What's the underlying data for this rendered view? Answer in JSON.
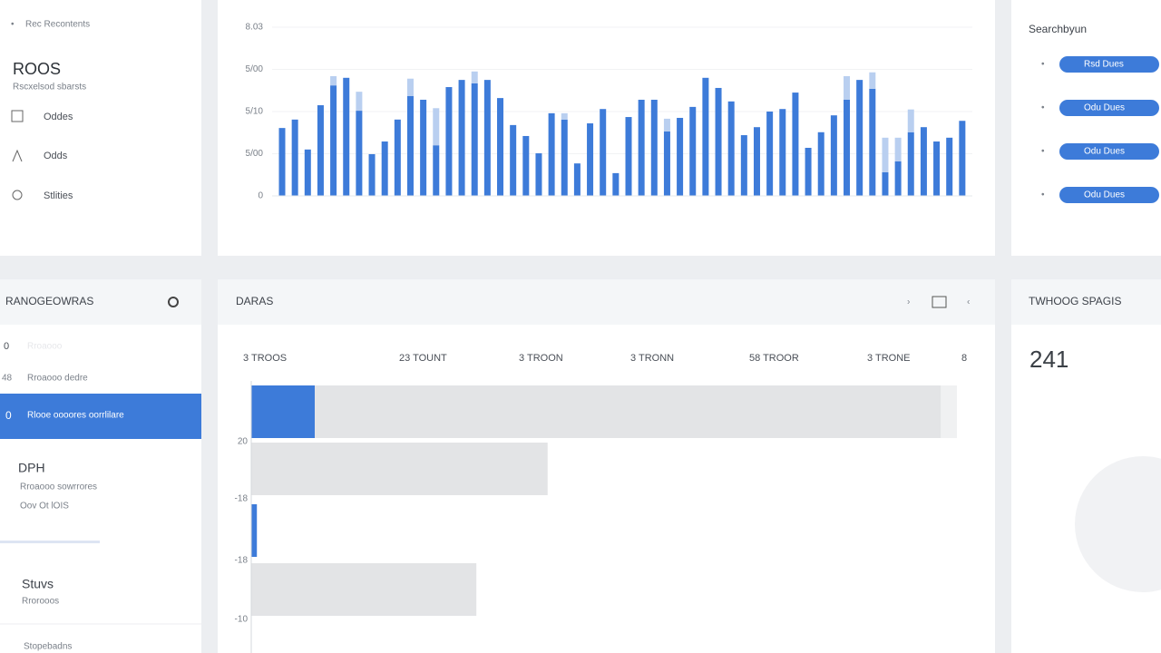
{
  "sidebar": {
    "header": "Rec Recontents",
    "title": "ROOS",
    "subtitle": "Rscxelsod sbarsts",
    "nav": [
      "Oddes",
      "Odds",
      "Stlities"
    ]
  },
  "search_panel": {
    "title": "Searchbyun",
    "pills": [
      "Rsd Dues",
      "Odu Dues",
      "Odu Dues",
      "Odu Dues"
    ]
  },
  "list_panel": {
    "title": "RANOGEOWRAS",
    "items": [
      {
        "num": "0",
        "text": "Rroaooo"
      },
      {
        "num": "48",
        "text": "Rroaooo dedre"
      },
      {
        "num": "0",
        "text": "Rlooe oooores oorrlilare"
      }
    ],
    "section1": {
      "title": "DPH",
      "lines": [
        "Rroaooo sowrrores",
        "Oov Ot lOIS"
      ]
    },
    "section2": {
      "title": "Stuvs",
      "lines": [
        "Rrorooos"
      ]
    },
    "footer": "Stopebadns"
  },
  "table_panel": {
    "title": "DARAS",
    "columns": [
      "3 TROOS",
      "23 TOUNT",
      "3 TROON",
      "3 TRONN",
      "58 TROOR",
      "3 TRONE",
      "8"
    ]
  },
  "stat_panel": {
    "title": "TWHOOG SPAGIS",
    "value": "241"
  },
  "chart_data": [
    {
      "type": "bar",
      "ylim": [
        0,
        4
      ],
      "yticks": [
        0,
        {
          "value": 1,
          "label": "5/00"
        },
        {
          "value": 2,
          "label": "5/10"
        },
        {
          "value": 3,
          "label": "5/00"
        },
        {
          "value": 4,
          "label": "8.03"
        }
      ],
      "grid": true,
      "series": [
        {
          "color": "#3d7bd9",
          "values": [
            1.61,
            1.81,
            1.1,
            2.15,
            2.62,
            2.8,
            2.02,
            0.99,
            1.29,
            1.81,
            2.37,
            2.28,
            1.2,
            2.58,
            2.75,
            2.67,
            2.75,
            2.32,
            1.68,
            1.42,
            1.01,
            1.96,
            1.81,
            0.77,
            1.72,
            2.06,
            0.54,
            1.87,
            2.28,
            2.28,
            1.53,
            1.85,
            2.11,
            2.8,
            2.56,
            2.24,
            1.44,
            1.63,
            2.0,
            2.06,
            2.45,
            1.14,
            1.51,
            1.91,
            2.28,
            2.75,
            2.54,
            0.56,
            0.82,
            1.51,
            1.63,
            1.29,
            1.38,
            1.78
          ]
        },
        {
          "color": "#b9cff0",
          "values": [
            0,
            0,
            0,
            0,
            0.22,
            0,
            0.45,
            0,
            0,
            0,
            0.41,
            0,
            0.88,
            0,
            0,
            0.28,
            0,
            0,
            0,
            0,
            0,
            0,
            0.15,
            0,
            0,
            0,
            0,
            0,
            0,
            0,
            0.3,
            0,
            0,
            0,
            0,
            0,
            0,
            0,
            0,
            0,
            0,
            0,
            0,
            0,
            0.56,
            0,
            0.39,
            0.82,
            0.56,
            0.54,
            0,
            0,
            0,
            0
          ]
        }
      ]
    },
    {
      "type": "hbar",
      "categories": [
        "20",
        "-18",
        "-18",
        "-10"
      ],
      "xlim": [
        0,
        100
      ],
      "series": [
        {
          "color": "#3d7bd9",
          "values": [
            9.0,
            0,
            0.8,
            0
          ]
        },
        {
          "color": "#e3e4e6",
          "values": [
            88.7,
            42.0,
            0,
            31.9
          ]
        }
      ]
    }
  ]
}
